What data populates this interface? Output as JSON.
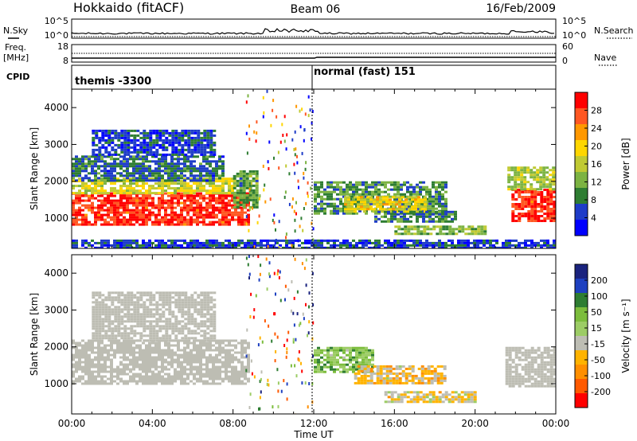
{
  "header": {
    "station": "Hokkaido (fitACF)",
    "beam": "Beam 06",
    "date": "16/Feb/2009"
  },
  "strips": {
    "nsky_label": "N.Sky",
    "nsearch_label": "N.Search",
    "freq_label_1": "Freq.",
    "freq_label_2": "[MHz]",
    "nave_label": "Nave",
    "cpid_label": "CPID",
    "nsky_ticks": [
      "10^5",
      "10^0"
    ],
    "nsearch_ticks": [
      "10^5",
      "10^0"
    ],
    "freq_ticks": [
      "18",
      "8"
    ],
    "nave_ticks": [
      "60",
      "0"
    ],
    "cpid_segments": [
      {
        "label": "themis -3300",
        "start_hour": 0,
        "end_hour": 12
      },
      {
        "label": "normal (fast) 151",
        "start_hour": 12,
        "end_hour": 24
      }
    ]
  },
  "colors": {
    "power_scale": [
      "#0000ff",
      "#1e3cc8",
      "#2e7d32",
      "#7cb342",
      "#c0ca33",
      "#ffd600",
      "#ff9800",
      "#ff5722",
      "#ff0000"
    ],
    "velocity_scale": [
      "#1a237e",
      "#1e40c0",
      "#2e7d32",
      "#7cbd3c",
      "#9ccc65",
      "#bdbdb3",
      "#ffb300",
      "#ff8f00",
      "#ff5a00",
      "#ff0000"
    ],
    "ground_scatter": "#bdbdb3"
  },
  "power_colorbar": {
    "label": "Power [dB]",
    "ticks": [
      "28",
      "24",
      "20",
      "16",
      "12",
      "8",
      "4"
    ]
  },
  "velocity_colorbar": {
    "label": "Velocity [m s⁻¹]",
    "ticks": [
      "200",
      "100",
      "50",
      "15",
      "-15",
      "-50",
      "-100",
      "-200"
    ]
  },
  "x_axis": {
    "label": "Time UT",
    "ticks": [
      "00:00",
      "04:00",
      "08:00",
      "12:00",
      "16:00",
      "20:00",
      "00:00"
    ]
  },
  "chart_data": [
    {
      "type": "heatmap",
      "title": "",
      "xlabel": "Time UT",
      "ylabel": "Slant Range [km]",
      "xlim": [
        0,
        24
      ],
      "ylim": [
        180,
        4500
      ],
      "yticks": [
        1000,
        2000,
        3000,
        4000
      ],
      "colorbar": {
        "label": "Power [dB]",
        "range": [
          0,
          30
        ]
      },
      "regions": [
        {
          "t0": 0.0,
          "t1": 8.7,
          "r0": 800,
          "r1": 1700,
          "value": 27
        },
        {
          "t0": 0.0,
          "t1": 8.0,
          "r0": 1650,
          "r1": 2100,
          "value": 16
        },
        {
          "t0": 0.0,
          "t1": 7.5,
          "r0": 2050,
          "r1": 2700,
          "value": 7
        },
        {
          "t0": 1.0,
          "t1": 7.0,
          "r0": 2700,
          "r1": 3400,
          "value": 5
        },
        {
          "t0": 8.0,
          "t1": 9.2,
          "r0": 1300,
          "r1": 2300,
          "value": 10
        },
        {
          "t0": 12.0,
          "t1": 18.5,
          "r0": 1100,
          "r1": 2000,
          "value": 9
        },
        {
          "t0": 13.5,
          "t1": 17.5,
          "r0": 1200,
          "r1": 1600,
          "value": 17
        },
        {
          "t0": 15.0,
          "t1": 19.0,
          "r0": 900,
          "r1": 1200,
          "value": 8
        },
        {
          "t0": 16.0,
          "t1": 20.5,
          "r0": 550,
          "r1": 800,
          "value": 12
        },
        {
          "t0": 21.8,
          "t1": 24.0,
          "r0": 900,
          "r1": 1800,
          "value": 27
        },
        {
          "t0": 21.6,
          "t1": 24.0,
          "r0": 1800,
          "r1": 2400,
          "value": 14
        },
        {
          "t0": 0.0,
          "t1": 24.0,
          "r0": 180,
          "r1": 420,
          "value": 5
        }
      ]
    },
    {
      "type": "heatmap",
      "title": "",
      "xlabel": "Time UT",
      "ylabel": "Slant Range [km]",
      "xlim": [
        0,
        24
      ],
      "ylim": [
        180,
        4500
      ],
      "yticks": [
        1000,
        2000,
        3000,
        4000
      ],
      "colorbar": {
        "label": "Velocity [m s⁻¹]",
        "range": [
          -250,
          250
        ]
      },
      "regions": [
        {
          "t0": 0.0,
          "t1": 8.7,
          "r0": 1000,
          "r1": 2200,
          "value": 0,
          "ground_scatter": true
        },
        {
          "t0": 1.0,
          "t1": 7.0,
          "r0": 2200,
          "r1": 3500,
          "value": 0,
          "ground_scatter": true
        },
        {
          "t0": 12.0,
          "t1": 15.0,
          "r0": 1300,
          "r1": 2000,
          "value": 60
        },
        {
          "t0": 14.0,
          "t1": 18.5,
          "r0": 1000,
          "r1": 1500,
          "value": -60
        },
        {
          "t0": 15.5,
          "t1": 20.0,
          "r0": 500,
          "r1": 800,
          "value": -40
        },
        {
          "t0": 21.5,
          "t1": 24.0,
          "r0": 900,
          "r1": 2000,
          "value": 0,
          "ground_scatter": true
        }
      ]
    }
  ]
}
